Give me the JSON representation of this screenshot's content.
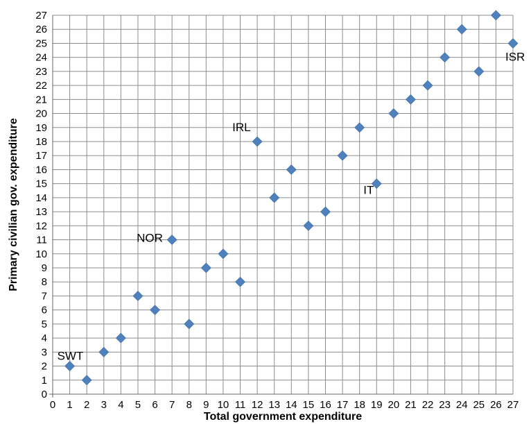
{
  "chart_data": {
    "type": "scatter",
    "title": "",
    "xlabel": "Total government expenditure",
    "ylabel": "Primary civilian gov. expenditure",
    "xlim": [
      0,
      27
    ],
    "ylim": [
      0,
      27
    ],
    "grid": true,
    "marker_color": "#4F81BD",
    "points": [
      {
        "x": 1,
        "y": 2
      },
      {
        "x": 2,
        "y": 1
      },
      {
        "x": 3,
        "y": 3
      },
      {
        "x": 4,
        "y": 4
      },
      {
        "x": 5,
        "y": 7
      },
      {
        "x": 6,
        "y": 6
      },
      {
        "x": 7,
        "y": 11
      },
      {
        "x": 8,
        "y": 5
      },
      {
        "x": 9,
        "y": 9
      },
      {
        "x": 10,
        "y": 10
      },
      {
        "x": 11,
        "y": 8
      },
      {
        "x": 12,
        "y": 18
      },
      {
        "x": 13,
        "y": 14
      },
      {
        "x": 14,
        "y": 16
      },
      {
        "x": 15,
        "y": 12
      },
      {
        "x": 16,
        "y": 13
      },
      {
        "x": 17,
        "y": 17
      },
      {
        "x": 18,
        "y": 19
      },
      {
        "x": 19,
        "y": 15
      },
      {
        "x": 20,
        "y": 20
      },
      {
        "x": 21,
        "y": 21
      },
      {
        "x": 22,
        "y": 22
      },
      {
        "x": 23,
        "y": 24
      },
      {
        "x": 24,
        "y": 26
      },
      {
        "x": 25,
        "y": 23
      },
      {
        "x": 26,
        "y": 27
      },
      {
        "x": 27,
        "y": 25
      }
    ],
    "annotations": [
      {
        "text": "SWT",
        "x": 1,
        "y": 2
      },
      {
        "text": "NOR",
        "x": 7,
        "y": 11
      },
      {
        "text": "IRL",
        "x": 12,
        "y": 18
      },
      {
        "text": "IT",
        "x": 19,
        "y": 15
      },
      {
        "text": "ISR",
        "x": 27,
        "y": 25
      }
    ]
  }
}
